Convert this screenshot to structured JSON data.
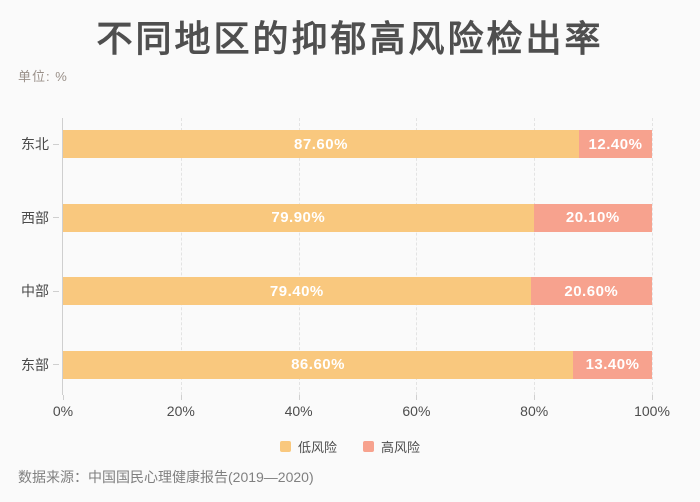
{
  "header": {
    "title": "不同地区的抑郁高风险检出率",
    "unit_label": "单位: %"
  },
  "chart_data": {
    "type": "bar",
    "orientation": "horizontal",
    "stacked": true,
    "title": "不同地区的抑郁高风险检出率",
    "unit": "%",
    "categories": [
      "东北",
      "西部",
      "中部",
      "东部"
    ],
    "series": [
      {
        "name": "低风险",
        "color": "#f9c87e",
        "values": [
          87.6,
          79.9,
          79.4,
          86.6
        ],
        "labels": [
          "87.60%",
          "79.90%",
          "79.40%",
          "86.60%"
        ]
      },
      {
        "name": "高风险",
        "color": "#f7a28e",
        "values": [
          12.4,
          20.1,
          20.6,
          13.4
        ],
        "labels": [
          "12.40%",
          "20.10%",
          "20.60%",
          "13.40%"
        ]
      }
    ],
    "x_axis": {
      "min": 0,
      "max": 100,
      "ticks": [
        "0%",
        "20%",
        "40%",
        "60%",
        "80%",
        "100%"
      ]
    },
    "grid": true,
    "legend_position": "bottom"
  },
  "footer": {
    "source": "数据来源：中国国民心理健康报告(2019—2020)"
  }
}
